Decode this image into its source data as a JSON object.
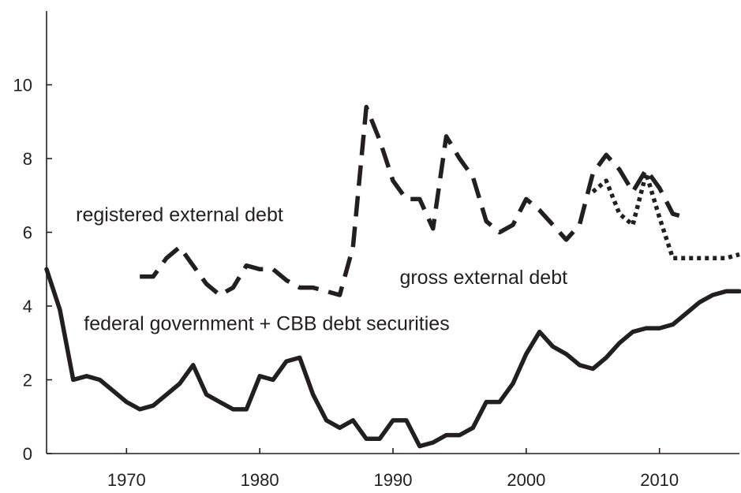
{
  "chart_data": {
    "type": "line",
    "title": "",
    "xlabel": "",
    "ylabel": "",
    "xlim": [
      1964,
      2016
    ],
    "ylim": [
      0,
      12
    ],
    "x_ticks": [
      1970,
      1980,
      1990,
      2000,
      2010
    ],
    "y_ticks": [
      0,
      2,
      4,
      6,
      8,
      10
    ],
    "grid": false,
    "legend": "none",
    "annotations": [
      {
        "text": "registered external debt",
        "x": 1966.2,
        "y": 6.3
      },
      {
        "text": "gross external debt",
        "x": 1990.5,
        "y": 4.6
      },
      {
        "text": "federal government + CBB debt securities",
        "x": 1966.8,
        "y": 3.35
      }
    ],
    "series": [
      {
        "label": "federal government + CBB debt securities",
        "style": "solid",
        "points": [
          [
            1964,
            5.0
          ],
          [
            1965,
            3.9
          ],
          [
            1966,
            2.0
          ],
          [
            1967,
            2.1
          ],
          [
            1968,
            2.0
          ],
          [
            1969,
            1.7
          ],
          [
            1970,
            1.4
          ],
          [
            1971,
            1.2
          ],
          [
            1972,
            1.3
          ],
          [
            1973,
            1.6
          ],
          [
            1974,
            1.9
          ],
          [
            1975,
            2.4
          ],
          [
            1976,
            1.6
          ],
          [
            1977,
            1.4
          ],
          [
            1978,
            1.2
          ],
          [
            1979,
            1.2
          ],
          [
            1980,
            2.1
          ],
          [
            1981,
            2.0
          ],
          [
            1982,
            2.5
          ],
          [
            1983,
            2.6
          ],
          [
            1984,
            1.6
          ],
          [
            1985,
            0.9
          ],
          [
            1986,
            0.7
          ],
          [
            1987,
            0.9
          ],
          [
            1988,
            0.4
          ],
          [
            1989,
            0.4
          ],
          [
            1990,
            0.9
          ],
          [
            1991,
            0.9
          ],
          [
            1992,
            0.2
          ],
          [
            1993,
            0.3
          ],
          [
            1994,
            0.5
          ],
          [
            1995,
            0.5
          ],
          [
            1996,
            0.7
          ],
          [
            1997,
            1.4
          ],
          [
            1998,
            1.4
          ],
          [
            1999,
            1.9
          ],
          [
            2000,
            2.7
          ],
          [
            2001,
            3.3
          ],
          [
            2002,
            2.9
          ],
          [
            2003,
            2.7
          ],
          [
            2004,
            2.4
          ],
          [
            2005,
            2.3
          ],
          [
            2006,
            2.6
          ],
          [
            2007,
            3.0
          ],
          [
            2008,
            3.3
          ],
          [
            2009,
            3.4
          ],
          [
            2010,
            3.4
          ],
          [
            2011,
            3.5
          ],
          [
            2012,
            3.8
          ],
          [
            2013,
            4.1
          ],
          [
            2014,
            4.3
          ],
          [
            2015,
            4.4
          ],
          [
            2016,
            4.4
          ]
        ]
      },
      {
        "label": "registered external debt",
        "style": "dashed",
        "points": [
          [
            1971,
            4.8
          ],
          [
            1972,
            4.8
          ],
          [
            1973,
            5.3
          ],
          [
            1974,
            5.6
          ],
          [
            1975,
            5.1
          ],
          [
            1976,
            4.6
          ],
          [
            1977,
            4.3
          ],
          [
            1978,
            4.5
          ],
          [
            1979,
            5.1
          ],
          [
            1980,
            5.0
          ],
          [
            1981,
            5.0
          ],
          [
            1982,
            4.7
          ],
          [
            1983,
            4.5
          ],
          [
            1984,
            4.5
          ],
          [
            1985,
            4.4
          ],
          [
            1986,
            4.3
          ],
          [
            1987,
            5.6
          ],
          [
            1988,
            9.4
          ],
          [
            1989,
            8.5
          ],
          [
            1990,
            7.4
          ],
          [
            1991,
            6.9
          ],
          [
            1992,
            6.9
          ],
          [
            1993,
            6.1
          ],
          [
            1994,
            8.6
          ],
          [
            1995,
            8.0
          ],
          [
            1996,
            7.5
          ],
          [
            1997,
            6.3
          ],
          [
            1998,
            6.0
          ],
          [
            1999,
            6.2
          ],
          [
            2000,
            6.9
          ],
          [
            2001,
            6.6
          ],
          [
            2002,
            6.2
          ],
          [
            2003,
            5.8
          ],
          [
            2004,
            6.2
          ],
          [
            2005,
            7.6
          ],
          [
            2006,
            8.1
          ],
          [
            2007,
            7.7
          ],
          [
            2008,
            7.1
          ],
          [
            2009,
            7.7
          ],
          [
            2010,
            7.2
          ],
          [
            2011,
            6.5
          ],
          [
            2012,
            6.4
          ]
        ]
      },
      {
        "label": "gross external debt",
        "style": "dotted",
        "points": [
          [
            2005,
            7.1
          ],
          [
            2006,
            7.4
          ],
          [
            2007,
            6.5
          ],
          [
            2008,
            6.2
          ],
          [
            2009,
            7.6
          ],
          [
            2010,
            6.4
          ],
          [
            2011,
            5.3
          ],
          [
            2012,
            5.3
          ],
          [
            2013,
            5.3
          ],
          [
            2014,
            5.3
          ],
          [
            2015,
            5.3
          ],
          [
            2016,
            5.4
          ]
        ]
      }
    ]
  }
}
